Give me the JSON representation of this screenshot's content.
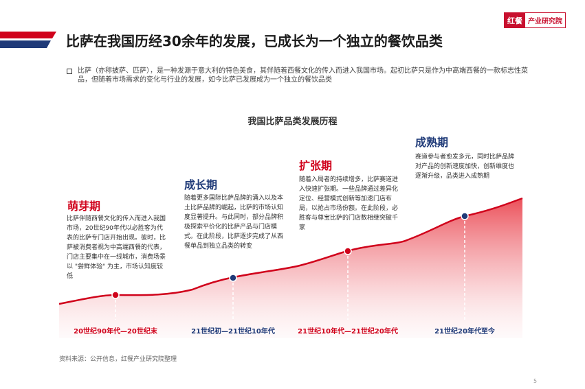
{
  "logo": {
    "mark": "红餐",
    "text": "产业研究院"
  },
  "title": "比萨在我国历经30余年的发展，已成长为一个独立的餐饮品类",
  "intro": "比萨（亦称披萨、匹萨），是一种发源于意大利的特色美食，其伴随着西餐文化的传入而进入我国市场。起初比萨只是作为中高端西餐的一款标志性菜品，但随着市场需求的变化与行业的发展，如今比萨已发展成为一个独立的餐饮品类",
  "chart": {
    "title": "我国比萨品类发展历程",
    "stages": [
      {
        "name": "萌芽期",
        "description": "比萨伴随西餐文化的传入而进入我国市场，20世纪90年代以必胜客为代表的比萨专门店开始出现。彼时，比萨被消费者视为中高端西餐的代表，门店主要集中在一线城市，消费场景以 \"尝鲜体验\" 为主，市场认知度较低",
        "era": "20世纪90年代—20世纪末",
        "marker_color": "#d0021b"
      },
      {
        "name": "成长期",
        "description": "随着更多国际比萨品牌的涌入以及本土比萨品牌的崛起，比萨的市场认知度显著提升。与此同时，部分品牌积极探索平价化的比萨产品与门店模式。在此阶段，比萨逐步完成了从西餐单品到独立品类的转变",
        "era": "21世纪初—21世纪10年代",
        "marker_color": "#1f3a78"
      },
      {
        "name": "扩张期",
        "description": "随着入局者的持续增多，比萨赛道进入快速扩张期。一些品牌通过差异化定位、经营模式创新等加速门店布局，以抢占市场份额。在此阶段，必胜客与尊宝比萨的门店数相继突破千家",
        "era": "21世纪10年代—21世纪20年代",
        "marker_color": "#d0021b"
      },
      {
        "name": "成熟期",
        "description": "赛道参与者愈发多元，同时比萨品牌对产品的创新速度加快，创新维度也逐渐升级，品类进入成熟期",
        "era": "21世纪20年代至今",
        "marker_color": "#1f3a78"
      }
    ]
  },
  "source": "资料来源：公开信息，红餐产业研究院整理",
  "page_number": "5"
}
